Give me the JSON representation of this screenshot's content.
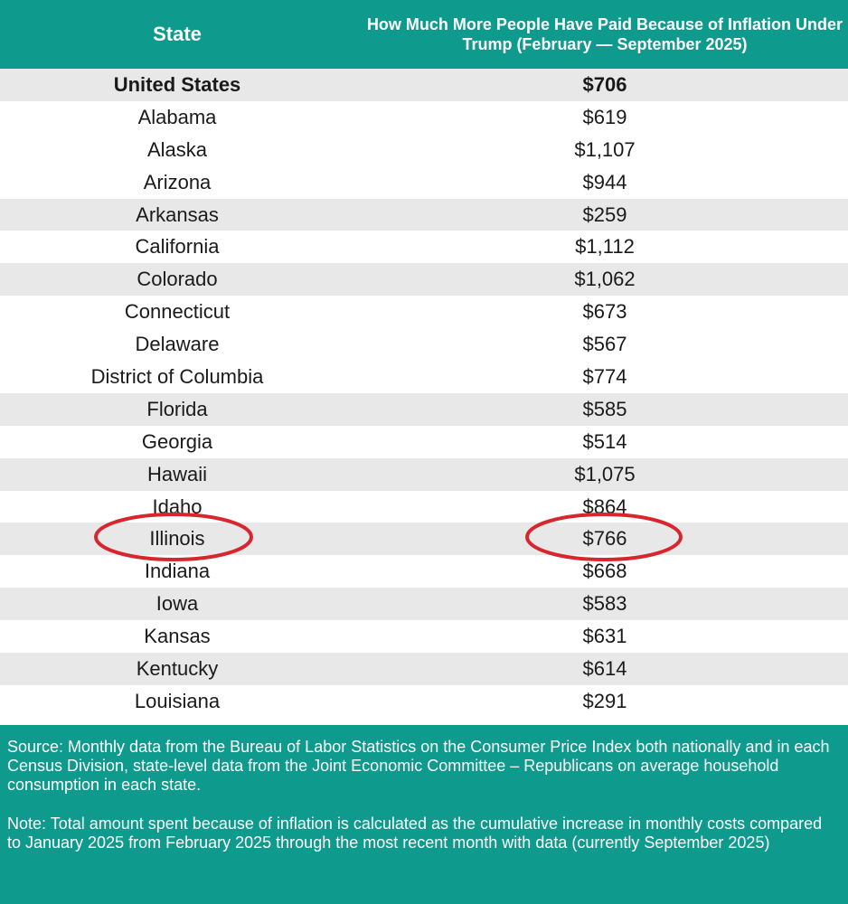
{
  "header": {
    "state_label": "State",
    "amount_label": "How Much More People Have Paid Because of Inflation Under Trump (February — September 2025)"
  },
  "rows": [
    {
      "state": "United States",
      "amount": "$706"
    },
    {
      "state": "Alabama",
      "amount": "$619"
    },
    {
      "state": "Alaska",
      "amount": "$1,107"
    },
    {
      "state": "Arizona",
      "amount": "$944"
    },
    {
      "state": "Arkansas",
      "amount": "$259"
    },
    {
      "state": "California",
      "amount": "$1,112"
    },
    {
      "state": "Colorado",
      "amount": "$1,062"
    },
    {
      "state": "Connecticut",
      "amount": "$673"
    },
    {
      "state": "Delaware",
      "amount": "$567"
    },
    {
      "state": "District of Columbia",
      "amount": "$774"
    },
    {
      "state": "Florida",
      "amount": "$585"
    },
    {
      "state": "Georgia",
      "amount": "$514"
    },
    {
      "state": "Hawaii",
      "amount": "$1,075"
    },
    {
      "state": "Idaho",
      "amount": "$864"
    },
    {
      "state": "Illinois",
      "amount": "$766"
    },
    {
      "state": "Indiana",
      "amount": "$668"
    },
    {
      "state": "Iowa",
      "amount": "$583"
    },
    {
      "state": "Kansas",
      "amount": "$631"
    },
    {
      "state": "Kentucky",
      "amount": "$614"
    },
    {
      "state": "Louisiana",
      "amount": "$291"
    }
  ],
  "highlighted_row": "Illinois",
  "footer": {
    "source": "Source: Monthly data from the Bureau of Labor Statistics on the Consumer Price Index both nationally and in each Census Division, state-level data from the Joint Economic Committee – Republicans on average household consumption in each state.",
    "note": "Note: Total amount spent because of inflation is calculated as the cumulative increase in monthly costs compared to January 2025 from February 2025 through the most recent month with data (currently September 2025)"
  },
  "colors": {
    "teal": "#0f9a8e",
    "row_shade": "#e8e8e8",
    "circle": "#d7262e"
  }
}
